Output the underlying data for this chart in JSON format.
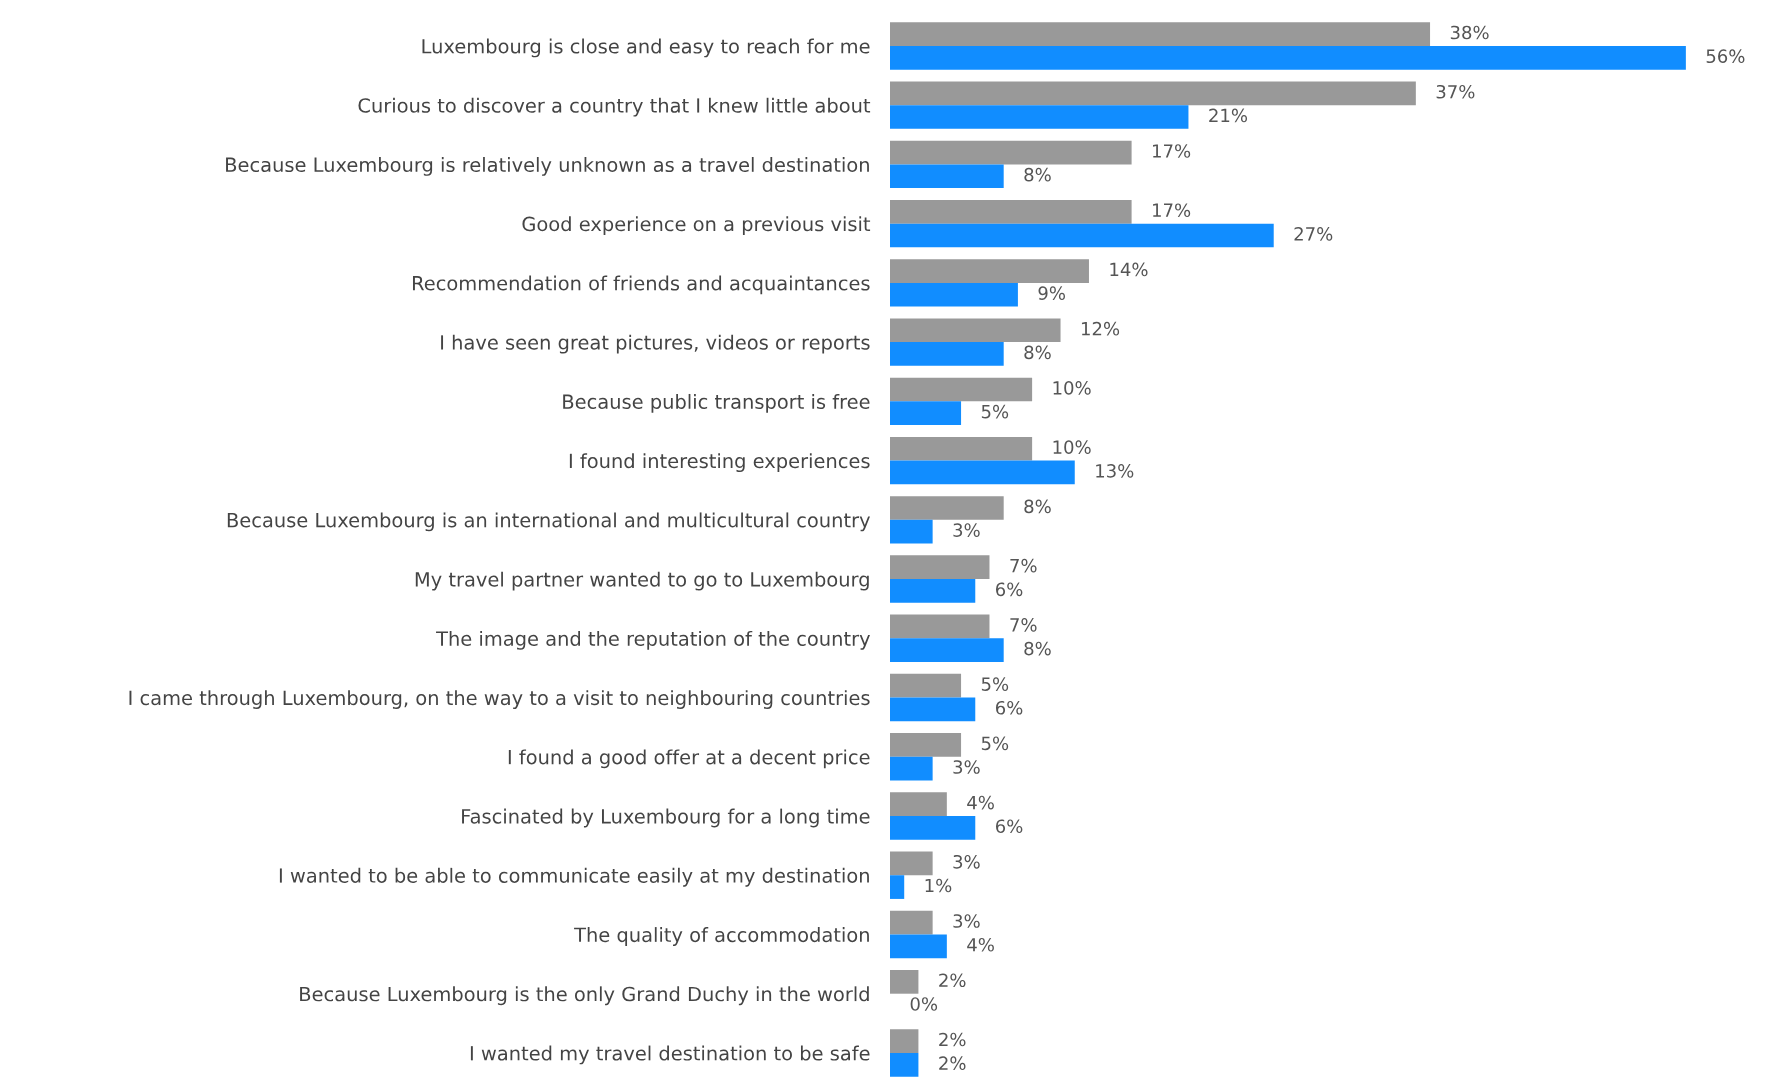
{
  "chart_data": {
    "type": "bar",
    "orientation": "horizontal",
    "grid": false,
    "legend": false,
    "categories": [
      "Luxembourg is close and easy to reach for me",
      "Curious to discover a country that I knew little about",
      "Because Luxembourg is relatively unknown as a travel destination",
      "Good experience on a previous visit",
      "Recommendation of friends and acquaintances",
      "I have seen great pictures, videos or reports",
      "Because public transport is free",
      "I found interesting experiences",
      "Because Luxembourg is an international and multicultural country",
      "My travel partner wanted to go to Luxembourg",
      "The image and the reputation of the country",
      "I came through Luxembourg, on the way to a visit to neighbouring countries",
      "I found a good offer at a decent price",
      "Fascinated by Luxembourg for a long time",
      "I wanted to be able to communicate easily at my destination",
      "The quality of accommodation",
      "Because Luxembourg is the only Grand Duchy in the world",
      "I wanted my travel destination to be safe"
    ],
    "series": [
      {
        "color": "#999999",
        "values": [
          38,
          37,
          17,
          17,
          14,
          12,
          10,
          10,
          8,
          7,
          7,
          5,
          5,
          4,
          3,
          3,
          2,
          2
        ],
        "value_labels": [
          "38%",
          "37%",
          "17%",
          "17%",
          "14%",
          "12%",
          "10%",
          "10%",
          "8%",
          "7%",
          "7%",
          "5%",
          "5%",
          "4%",
          "3%",
          "3%",
          "2%",
          "2%"
        ]
      },
      {
        "color": "#118dff",
        "values": [
          56,
          21,
          8,
          27,
          9,
          8,
          5,
          13,
          3,
          6,
          8,
          6,
          3,
          6,
          1,
          4,
          0,
          2
        ],
        "value_labels": [
          "56%",
          "21%",
          "8%",
          "27%",
          "9%",
          "8%",
          "5%",
          "13%",
          "3%",
          "6%",
          "8%",
          "6%",
          "3%",
          "6%",
          "1%",
          "4%",
          "0%",
          "2%"
        ]
      }
    ]
  }
}
